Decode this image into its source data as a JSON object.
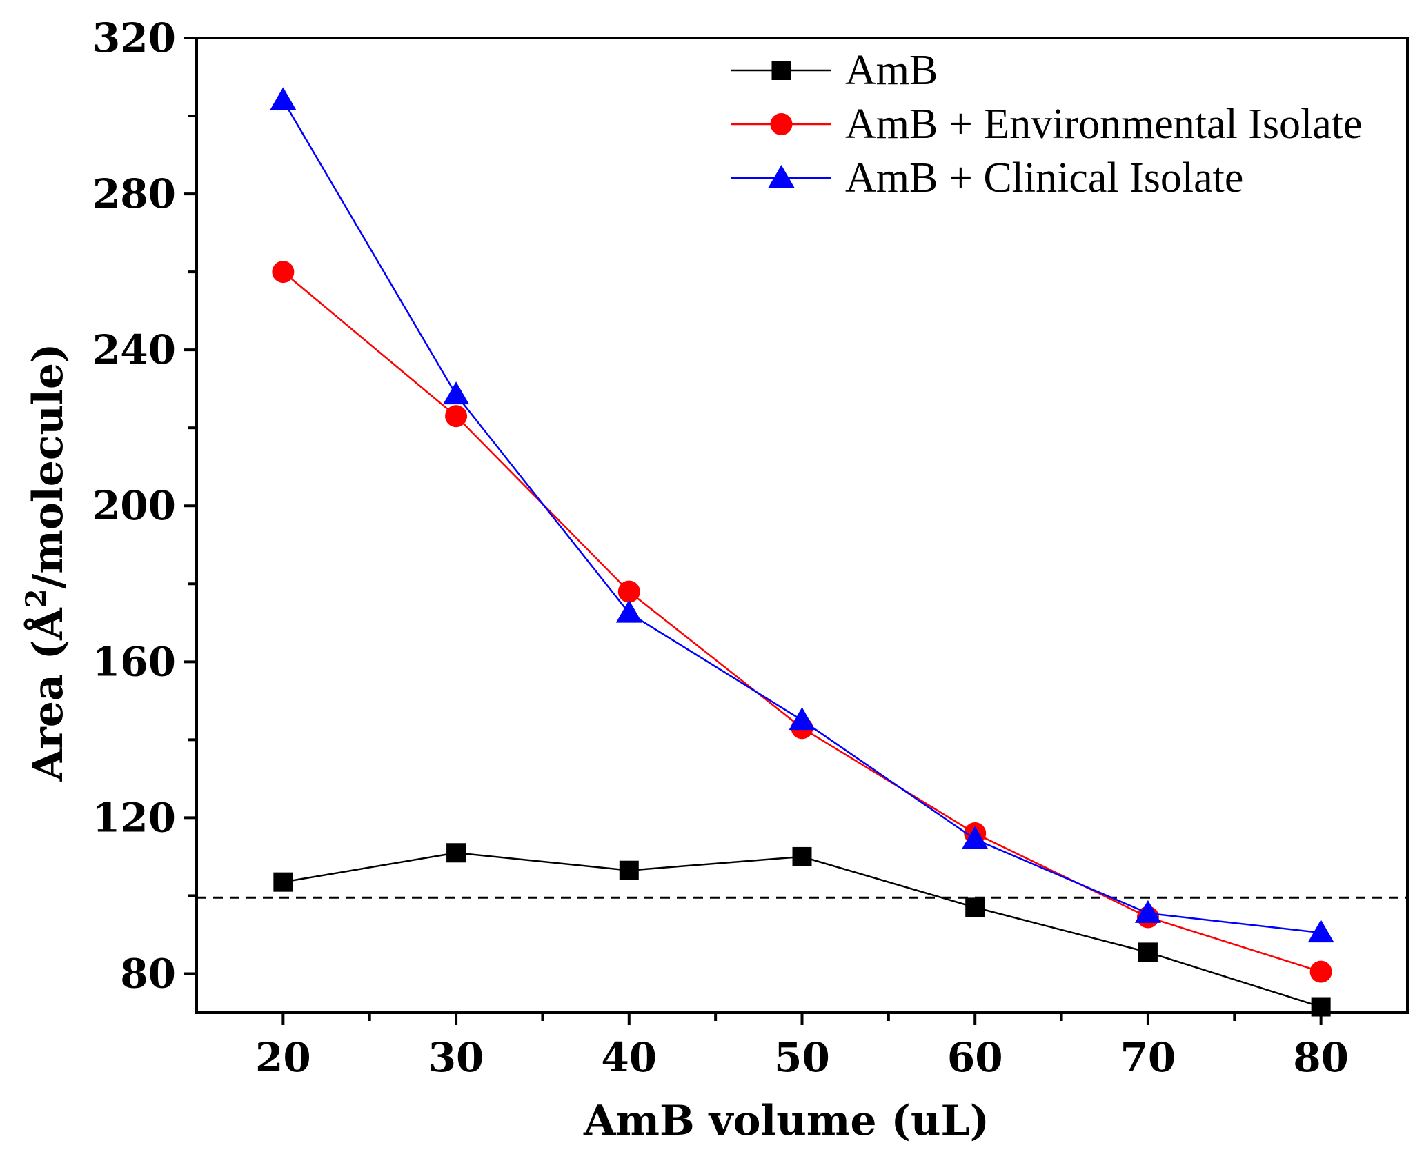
{
  "chart_data": {
    "type": "line",
    "title": "",
    "xlabel": "AmB volume (uL)",
    "ylabel_main": "Area (Å",
    "ylabel_sup": "2",
    "ylabel_tail": "/molecule)",
    "xlim": [
      15,
      85
    ],
    "ylim": [
      70,
      320
    ],
    "xticks": [
      20,
      30,
      40,
      50,
      60,
      70,
      80
    ],
    "xtick_labels": [
      "20",
      "30",
      "40",
      "50",
      "60",
      "70",
      "80"
    ],
    "yticks": [
      80,
      120,
      160,
      200,
      240,
      280,
      320
    ],
    "ytick_labels": [
      "80",
      "120",
      "160",
      "200",
      "240",
      "280",
      "320"
    ],
    "reference_line": {
      "y": 99.5,
      "style": "dashed",
      "color": "#000000"
    },
    "series": [
      {
        "name": "AmB",
        "marker": "square",
        "color": "#000000",
        "x": [
          20,
          30,
          40,
          50,
          60,
          70,
          80
        ],
        "values": [
          103.5,
          111,
          106.5,
          110,
          97,
          85.5,
          71.5
        ]
      },
      {
        "name": "AmB + Environmental Isolate",
        "marker": "circle",
        "color": "#ff0000",
        "x": [
          20,
          30,
          40,
          50,
          60,
          70,
          80
        ],
        "values": [
          260,
          223,
          178,
          143,
          116,
          94.5,
          80.5
        ]
      },
      {
        "name": "AmB + Clinical Isolate",
        "marker": "triangle",
        "color": "#0000ff",
        "x": [
          20,
          30,
          40,
          50,
          60,
          70,
          80
        ],
        "values": [
          304,
          228.5,
          172.5,
          145,
          114.5,
          95.5,
          90.5
        ]
      }
    ],
    "legend_position": "top-right"
  }
}
